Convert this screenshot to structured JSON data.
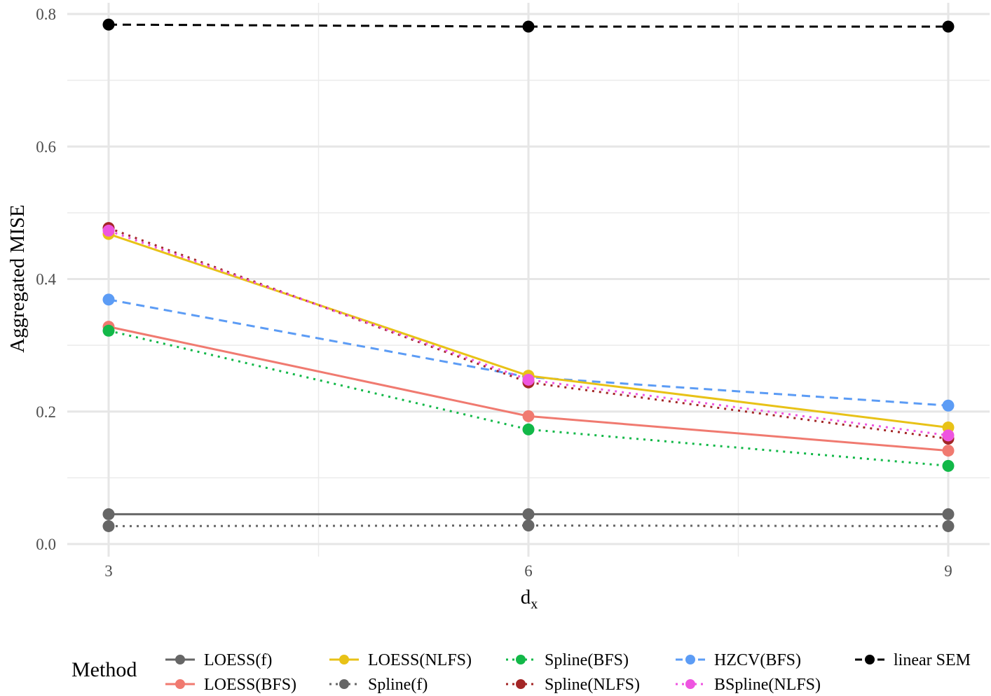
{
  "chart_data": {
    "type": "line",
    "xlabel": "d",
    "xlabel_sub": "x",
    "ylabel": "Aggregated MISE",
    "x": [
      3,
      6,
      9
    ],
    "xticks": [
      "3",
      "6",
      "9"
    ],
    "yticks": [
      "0.0",
      "0.2",
      "0.4",
      "0.6",
      "0.8"
    ],
    "xlim": [
      2.7,
      9.3
    ],
    "ylim": [
      0,
      0.8
    ],
    "grid": true,
    "legend": {
      "title": "Method",
      "position": "bottom"
    },
    "series": [
      {
        "name": "LOESS(f)",
        "color": "#666666",
        "linetype": "solid",
        "values": [
          0.045,
          0.045,
          0.045
        ]
      },
      {
        "name": "LOESS(BFS)",
        "color": "#f07a70",
        "linetype": "solid",
        "values": [
          0.328,
          0.193,
          0.141
        ]
      },
      {
        "name": "LOESS(NLFS)",
        "color": "#e8c217",
        "linetype": "solid",
        "values": [
          0.468,
          0.254,
          0.176
        ]
      },
      {
        "name": "Spline(f)",
        "color": "#666666",
        "linetype": "dotted",
        "values": [
          0.027,
          0.028,
          0.027
        ]
      },
      {
        "name": "Spline(BFS)",
        "color": "#12b848",
        "linetype": "dotted",
        "values": [
          0.322,
          0.173,
          0.118
        ]
      },
      {
        "name": "Spline(NLFS)",
        "color": "#a32626",
        "linetype": "dotted",
        "values": [
          0.477,
          0.244,
          0.159
        ]
      },
      {
        "name": "HZCV(BFS)",
        "color": "#5c9cf5",
        "linetype": "dashed",
        "values": [
          0.369,
          0.252,
          0.209
        ]
      },
      {
        "name": "BSpline(NLFS)",
        "color": "#ee55e0",
        "linetype": "dotted",
        "values": [
          0.473,
          0.248,
          0.164
        ]
      },
      {
        "name": "linear SEM",
        "color": "#000000",
        "linetype": "dashed",
        "values": [
          0.784,
          0.781,
          0.781
        ]
      }
    ],
    "draw_order": [
      8,
      0,
      3,
      6,
      1,
      4,
      2,
      5,
      7
    ]
  }
}
